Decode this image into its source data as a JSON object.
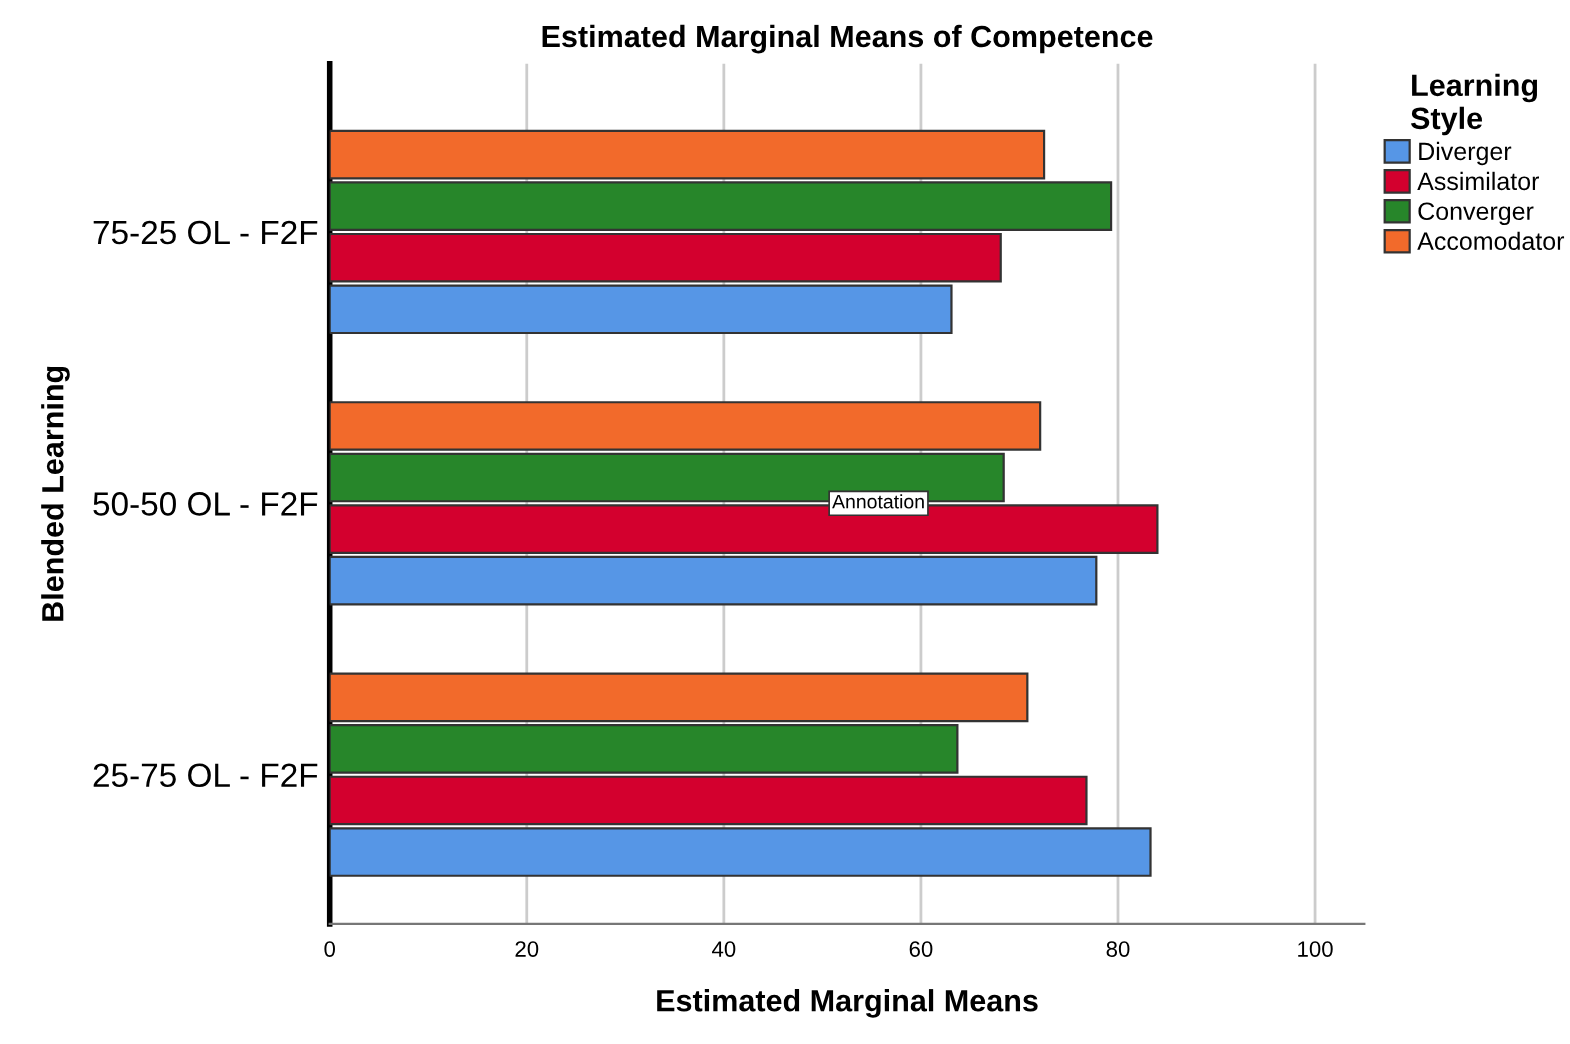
{
  "chart_data": {
    "type": "bar",
    "orientation": "horizontal",
    "title": "Estimated Marginal Means of Competence",
    "xlabel": "Estimated Marginal Means",
    "ylabel": "Blended Learning",
    "legend_title": "Learning\nStyle",
    "categories": [
      "75-25 OL - F2F",
      "50-50 OL - F2F",
      "25-75 OL - F2F"
    ],
    "series": [
      {
        "name": "Diverger",
        "color": "#5696e6",
        "values": [
          63.1,
          77.8,
          83.3
        ]
      },
      {
        "name": "Assimilator",
        "color": "#d3002e",
        "values": [
          68.1,
          84.0,
          76.8
        ]
      },
      {
        "name": "Converger",
        "color": "#27862a",
        "values": [
          79.3,
          68.4,
          63.7
        ]
      },
      {
        "name": "Accomodator",
        "color": "#f26a2b",
        "values": [
          72.5,
          72.1,
          70.8
        ]
      }
    ],
    "xlim": [
      0,
      105
    ],
    "xticks": [
      0,
      20,
      40,
      60,
      80,
      100
    ],
    "grid": "x",
    "legend": "right",
    "annotations": [
      {
        "text": "Annotation",
        "x": 55.7,
        "y": "50-50 OL - F2F"
      }
    ]
  }
}
